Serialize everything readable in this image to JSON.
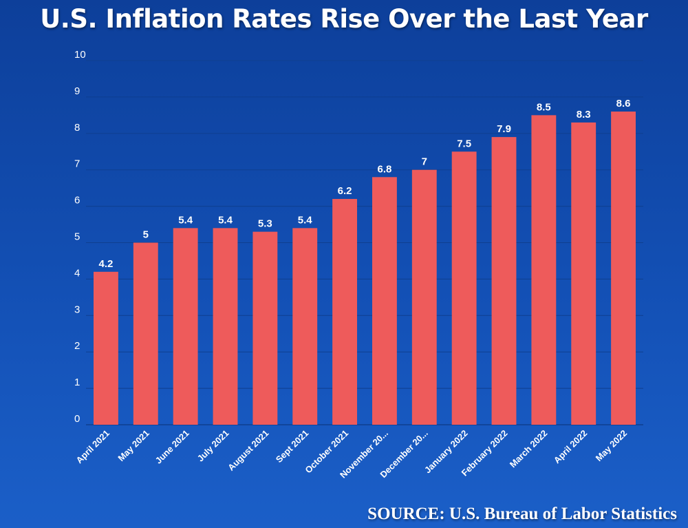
{
  "title": "U.S. Inflation Rates Rise Over the Last Year",
  "source": "SOURCE: U.S. Bureau of Labor Statistics",
  "colors": {
    "bar": "#ee5b5b",
    "background": "#1350b5",
    "text": "#ffffff",
    "grid": "#0f3f8f"
  },
  "chart_data": {
    "type": "bar",
    "categories": [
      "April 2021",
      "May 2021",
      "June 2021",
      "July 2021",
      "August 2021",
      "Sept 2021",
      "October 2021",
      "November 20...",
      "December 20...",
      "January 2022",
      "February 2022",
      "March 2022",
      "April 2022",
      "May 2022"
    ],
    "values": [
      4.2,
      5,
      5.4,
      5.4,
      5.3,
      5.4,
      6.2,
      6.8,
      7,
      7.5,
      7.9,
      8.5,
      8.3,
      8.6
    ],
    "value_labels": [
      "4.2",
      "5",
      "5.4",
      "5.4",
      "5.3",
      "5.4",
      "6.2",
      "6.8",
      "7",
      "7.5",
      "7.9",
      "8.5",
      "8.3",
      "8.6"
    ],
    "yticks": [
      0,
      1,
      2,
      3,
      4,
      5,
      6,
      7,
      8,
      9,
      10
    ],
    "ylim": [
      0,
      10
    ],
    "xlabel": "",
    "ylabel": "",
    "grid": true,
    "legend": "none"
  }
}
